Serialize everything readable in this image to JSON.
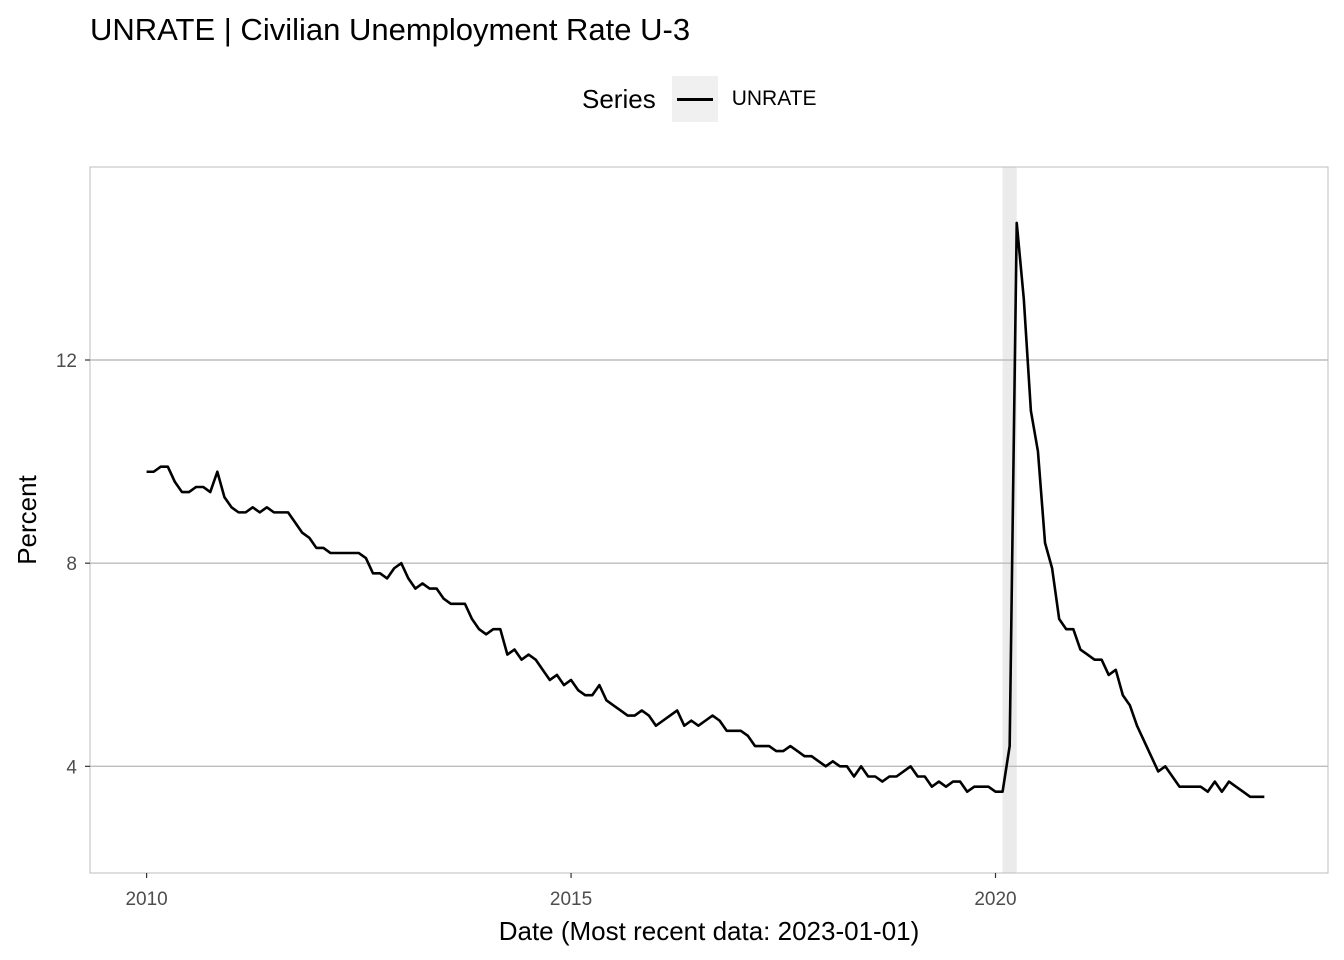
{
  "title": "UNRATE | Civilian Unemployment Rate U-3",
  "legend": {
    "title": "Series",
    "label": "UNRATE"
  },
  "colors": {
    "line": "#000000",
    "recession": "#ebebeb",
    "grid": "#bdbdbd",
    "panel_border": "#bdbdbd"
  },
  "chart_data": {
    "type": "line",
    "xlabel": "Date (Most recent data: 2023-01-01)",
    "ylabel": "Percent",
    "xlim": [
      "2009-05-01",
      "2023-12-01"
    ],
    "ylim": [
      1.9,
      15.8
    ],
    "x_ticks": [
      "2010-01-01",
      "2015-01-01",
      "2020-01-01"
    ],
    "x_tick_labels": [
      "2010",
      "2015",
      "2020"
    ],
    "y_ticks": [
      4,
      8,
      12
    ],
    "y_tick_labels": [
      "4",
      "8",
      "12"
    ],
    "grid": "horizontal",
    "legend_position": "top",
    "shaded_regions": [
      {
        "start": "2020-02-01",
        "end": "2020-04-01"
      }
    ],
    "series": [
      {
        "name": "UNRATE",
        "start": "2010-01-01",
        "frequency": "monthly",
        "values": [
          9.8,
          9.8,
          9.9,
          9.9,
          9.6,
          9.4,
          9.4,
          9.5,
          9.5,
          9.4,
          9.8,
          9.3,
          9.1,
          9.0,
          9.0,
          9.1,
          9.0,
          9.1,
          9.0,
          9.0,
          9.0,
          8.8,
          8.6,
          8.5,
          8.3,
          8.3,
          8.2,
          8.2,
          8.2,
          8.2,
          8.2,
          8.1,
          7.8,
          7.8,
          7.7,
          7.9,
          8.0,
          7.7,
          7.5,
          7.6,
          7.5,
          7.5,
          7.3,
          7.2,
          7.2,
          7.2,
          6.9,
          6.7,
          6.6,
          6.7,
          6.7,
          6.2,
          6.3,
          6.1,
          6.2,
          6.1,
          5.9,
          5.7,
          5.8,
          5.6,
          5.7,
          5.5,
          5.4,
          5.4,
          5.6,
          5.3,
          5.2,
          5.1,
          5.0,
          5.0,
          5.1,
          5.0,
          4.8,
          4.9,
          5.0,
          5.1,
          4.8,
          4.9,
          4.8,
          4.9,
          5.0,
          4.9,
          4.7,
          4.7,
          4.7,
          4.6,
          4.4,
          4.4,
          4.4,
          4.3,
          4.3,
          4.4,
          4.3,
          4.2,
          4.2,
          4.1,
          4.0,
          4.1,
          4.0,
          4.0,
          3.8,
          4.0,
          3.8,
          3.8,
          3.7,
          3.8,
          3.8,
          3.9,
          4.0,
          3.8,
          3.8,
          3.6,
          3.7,
          3.6,
          3.7,
          3.7,
          3.5,
          3.6,
          3.6,
          3.6,
          3.5,
          3.5,
          4.4,
          14.7,
          13.2,
          11.0,
          10.2,
          8.4,
          7.9,
          6.9,
          6.7,
          6.7,
          6.3,
          6.2,
          6.1,
          6.1,
          5.8,
          5.9,
          5.4,
          5.2,
          4.8,
          4.5,
          4.2,
          3.9,
          4.0,
          3.8,
          3.6,
          3.6,
          3.6,
          3.6,
          3.5,
          3.7,
          3.5,
          3.7,
          3.6,
          3.5,
          3.4,
          3.4,
          3.4
        ]
      }
    ]
  }
}
